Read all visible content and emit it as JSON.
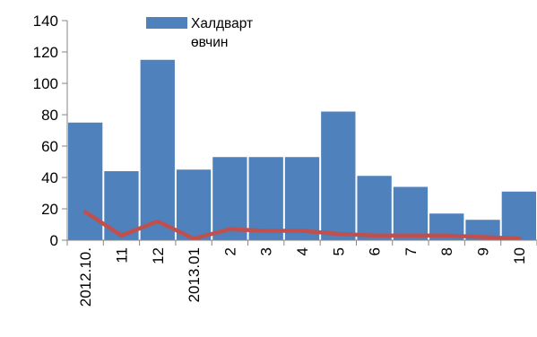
{
  "chart_data": {
    "type": "bar",
    "categories": [
      "2012.10.",
      "11",
      "12",
      "2013.01",
      "2",
      "3",
      "4",
      "5",
      "6",
      "7",
      "8",
      "9",
      "10"
    ],
    "series": [
      {
        "name": "Халдварт өвчин",
        "type": "bar",
        "values": [
          75,
          44,
          115,
          45,
          53,
          53,
          53,
          82,
          41,
          34,
          17,
          13,
          31
        ],
        "color": "#4F81BD"
      },
      {
        "type": "line",
        "values": [
          18,
          3,
          12,
          1,
          7,
          6,
          6,
          4,
          3,
          3,
          3,
          2,
          1
        ],
        "color": "#C0504D"
      }
    ],
    "ylim": [
      0,
      140
    ],
    "yticks": [
      0,
      20,
      40,
      60,
      80,
      100,
      120,
      140
    ],
    "legend": {
      "position": "top",
      "label_line1": "Халдварт",
      "label_line2": "өвчин"
    },
    "grid": false
  }
}
